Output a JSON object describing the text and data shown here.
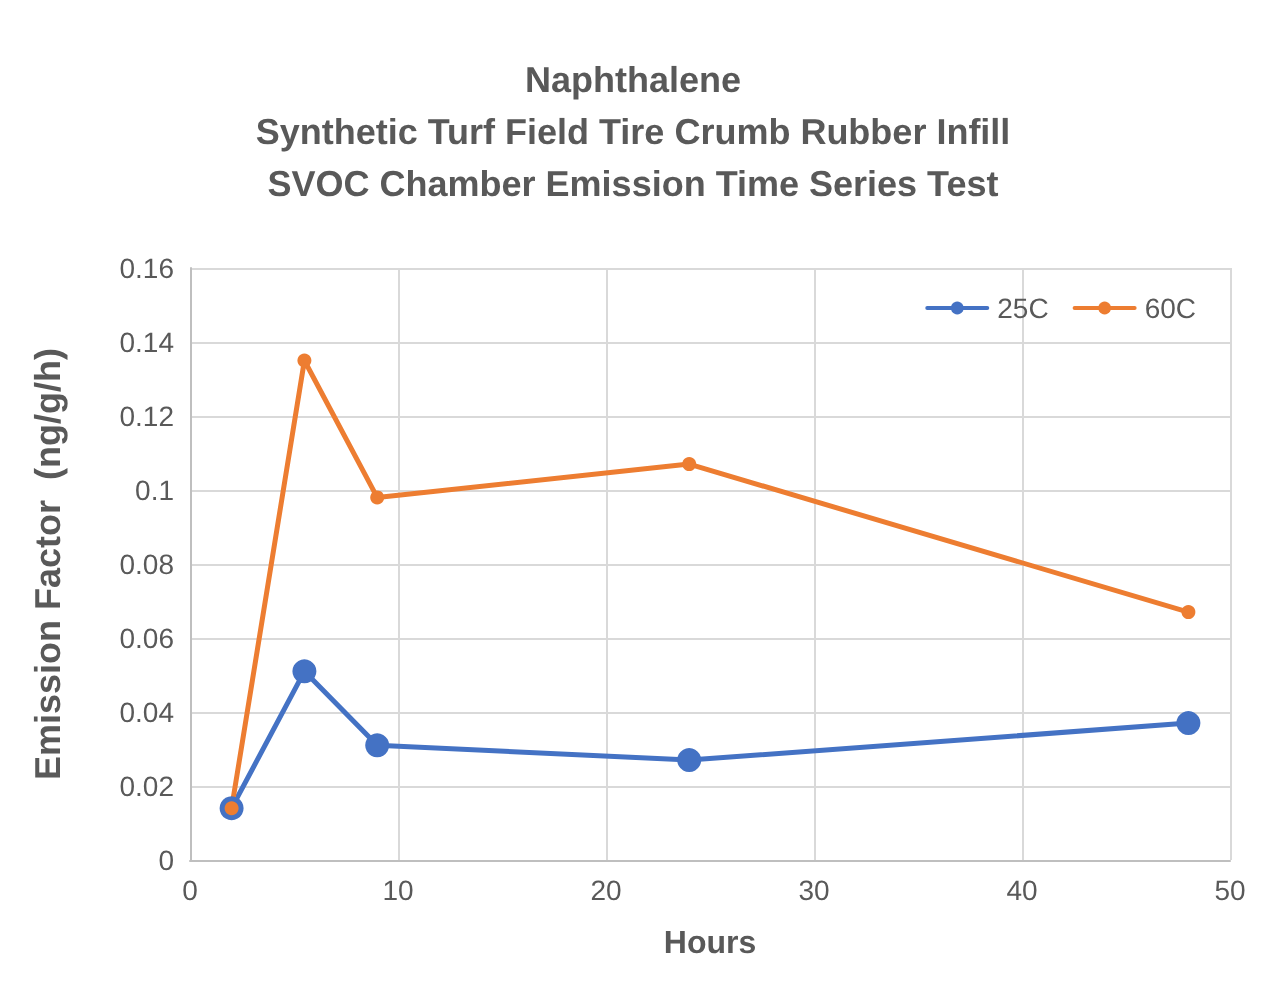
{
  "chart_data": {
    "type": "line",
    "title": "Naphthalene\nSynthetic Turf Field Tire Crumb Rubber Infill\nSVOC Chamber Emission Time Series Test",
    "xlabel": "Hours",
    "ylabel": "Emission Factor  (ng/g/h)",
    "x": [
      2,
      5.5,
      9,
      24,
      48
    ],
    "series": [
      {
        "name": "25C",
        "color": "#4472c4",
        "values": [
          0.014,
          0.051,
          0.031,
          0.027,
          0.037
        ]
      },
      {
        "name": "60C",
        "color": "#ed7d31",
        "values": [
          0.014,
          0.135,
          0.098,
          0.107,
          0.067
        ]
      }
    ],
    "xlim": [
      0,
      50
    ],
    "xticks": [
      0,
      10,
      20,
      30,
      40,
      50
    ],
    "ylim": [
      0,
      0.16
    ],
    "yticks": [
      0,
      0.02,
      0.04,
      0.06,
      0.08,
      0.1,
      0.12,
      0.14,
      0.16
    ],
    "grid": true,
    "legend": "top right",
    "marker": "circle",
    "line_style": "solid"
  }
}
